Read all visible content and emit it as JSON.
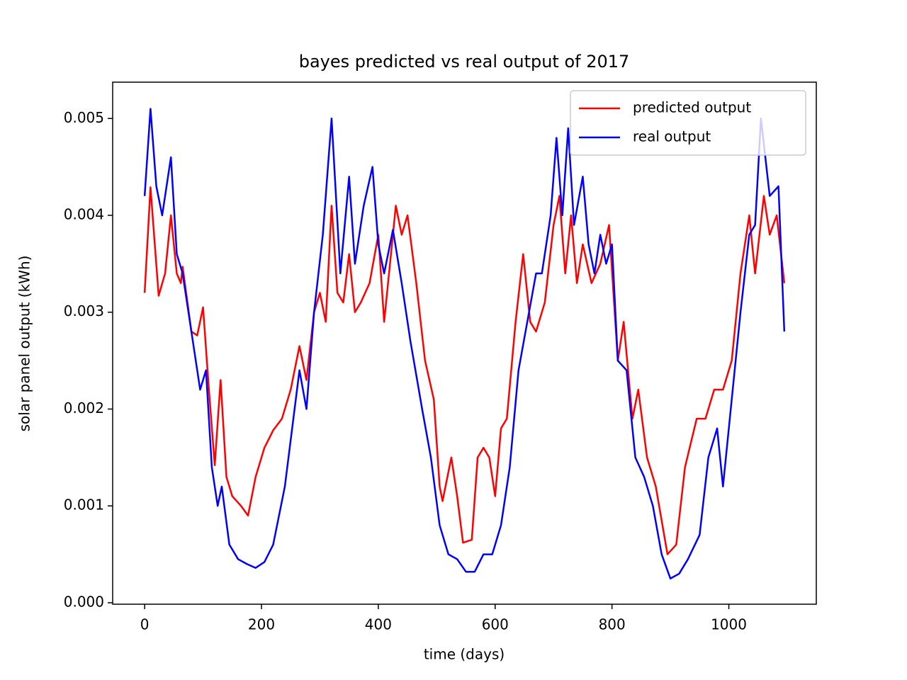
{
  "chart_data": {
    "type": "line",
    "title": "bayes predicted vs real output of 2017",
    "xlabel": "time (days)",
    "ylabel": "solar panel output (kWh)",
    "xlim": [
      -54.75,
      1149.75
    ],
    "ylim": [
      -1.5e-05,
      0.005375
    ],
    "xticks": [
      0,
      200,
      400,
      600,
      800,
      1000
    ],
    "yticks": [
      {
        "value": 0,
        "label": "0.000"
      },
      0.001,
      0.002,
      0.003,
      0.004,
      0.005
    ],
    "legend": "upper right",
    "series": [
      {
        "name": "predicted output",
        "color": "#ff0000",
        "x": [
          0,
          10,
          24,
          35,
          45,
          55,
          62,
          65,
          80,
          90,
          100,
          110,
          120,
          130,
          140,
          150,
          165,
          177,
          190,
          205,
          220,
          235,
          250,
          265,
          277,
          290,
          300,
          310,
          320,
          330,
          340,
          350,
          360,
          370,
          385,
          400,
          410,
          430,
          440,
          450,
          465,
          480,
          495,
          505,
          510,
          525,
          535,
          545,
          560,
          570,
          580,
          590,
          600,
          610,
          620,
          635,
          648,
          660,
          670,
          685,
          700,
          710,
          720,
          730,
          740,
          750,
          765,
          780,
          795,
          810,
          820,
          835,
          845,
          860,
          875,
          895,
          910,
          925,
          945,
          960,
          975,
          990,
          1005,
          1020,
          1035,
          1045,
          1060,
          1070,
          1082,
          1095
        ],
        "values": [
          0.0032,
          0.00429,
          0.00317,
          0.0034,
          0.004,
          0.0034,
          0.0033,
          0.00347,
          0.0028,
          0.00276,
          0.00305,
          0.0022,
          0.00142,
          0.0023,
          0.0013,
          0.0011,
          0.001,
          0.0009,
          0.0013,
          0.0016,
          0.00178,
          0.0019,
          0.0022,
          0.00265,
          0.0023,
          0.003,
          0.0032,
          0.0029,
          0.0041,
          0.0032,
          0.0031,
          0.0036,
          0.003,
          0.0031,
          0.0033,
          0.0038,
          0.0029,
          0.0041,
          0.0038,
          0.004,
          0.0033,
          0.0025,
          0.0021,
          0.0012,
          0.00105,
          0.0015,
          0.0011,
          0.00062,
          0.00065,
          0.0015,
          0.0016,
          0.0015,
          0.0011,
          0.0018,
          0.0019,
          0.0029,
          0.0036,
          0.0029,
          0.0028,
          0.0031,
          0.0039,
          0.0042,
          0.0034,
          0.004,
          0.0033,
          0.0037,
          0.0033,
          0.0035,
          0.0039,
          0.0025,
          0.0029,
          0.0019,
          0.0022,
          0.0015,
          0.0012,
          0.0005,
          0.0006,
          0.0014,
          0.0019,
          0.0019,
          0.0022,
          0.0022,
          0.0025,
          0.0034,
          0.004,
          0.0034,
          0.0042,
          0.0038,
          0.004,
          0.0033
        ]
      },
      {
        "name": "real output",
        "color": "#0000ff",
        "x": [
          0,
          10,
          20,
          30,
          45,
          55,
          65,
          80,
          95,
          105,
          115,
          125,
          132,
          145,
          160,
          175,
          190,
          205,
          220,
          240,
          265,
          277,
          290,
          305,
          320,
          335,
          350,
          360,
          375,
          390,
          400,
          410,
          425,
          440,
          455,
          475,
          490,
          505,
          520,
          535,
          550,
          565,
          580,
          595,
          610,
          625,
          640,
          655,
          670,
          680,
          695,
          705,
          715,
          725,
          735,
          750,
          760,
          770,
          780,
          790,
          800,
          810,
          825,
          840,
          855,
          870,
          885,
          900,
          915,
          930,
          950,
          965,
          980,
          990,
          1005,
          1020,
          1035,
          1045,
          1055,
          1070,
          1085,
          1095
        ],
        "values": [
          0.0042,
          0.0051,
          0.0043,
          0.004,
          0.0046,
          0.0036,
          0.0034,
          0.0028,
          0.0022,
          0.0024,
          0.0014,
          0.001,
          0.0012,
          0.0006,
          0.00045,
          0.0004,
          0.00036,
          0.00042,
          0.0006,
          0.0012,
          0.0024,
          0.002,
          0.003,
          0.0038,
          0.005,
          0.0034,
          0.0044,
          0.0035,
          0.0041,
          0.0045,
          0.0037,
          0.0034,
          0.00385,
          0.0033,
          0.0027,
          0.002,
          0.0015,
          0.0008,
          0.0005,
          0.00045,
          0.00032,
          0.00032,
          0.0005,
          0.0005,
          0.0008,
          0.0014,
          0.0024,
          0.0029,
          0.0034,
          0.0034,
          0.004,
          0.0048,
          0.004,
          0.0049,
          0.0039,
          0.0044,
          0.0037,
          0.0034,
          0.0038,
          0.0035,
          0.0037,
          0.0025,
          0.0024,
          0.0015,
          0.0013,
          0.001,
          0.0005,
          0.00025,
          0.0003,
          0.00045,
          0.0007,
          0.0015,
          0.0018,
          0.0012,
          0.0021,
          0.003,
          0.0038,
          0.0039,
          0.005,
          0.0042,
          0.0043,
          0.0028
        ]
      }
    ]
  }
}
